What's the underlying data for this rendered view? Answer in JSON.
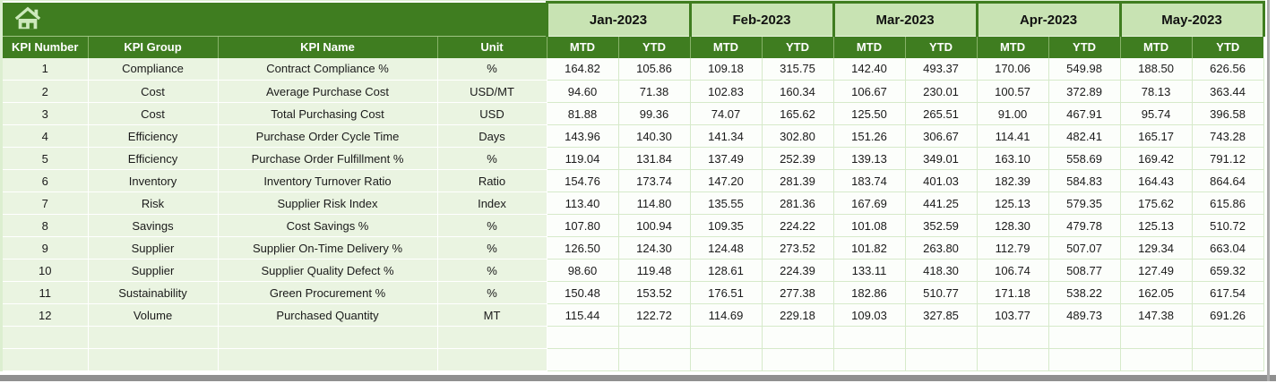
{
  "header": {
    "left": [
      "KPI Number",
      "KPI Group",
      "KPI Name",
      "Unit"
    ],
    "months": [
      "Jan-2023",
      "Feb-2023",
      "Mar-2023",
      "Apr-2023",
      "May-2023"
    ],
    "sub": [
      "MTD",
      "YTD"
    ]
  },
  "rows": [
    {
      "num": "1",
      "group": "Compliance",
      "name": "Contract Compliance %",
      "unit": "%",
      "values": [
        "164.82",
        "105.86",
        "109.18",
        "315.75",
        "142.40",
        "493.37",
        "170.06",
        "549.98",
        "188.50",
        "626.56"
      ]
    },
    {
      "num": "2",
      "group": "Cost",
      "name": "Average Purchase Cost",
      "unit": "USD/MT",
      "values": [
        "94.60",
        "71.38",
        "102.83",
        "160.34",
        "106.67",
        "230.01",
        "100.57",
        "372.89",
        "78.13",
        "363.44"
      ]
    },
    {
      "num": "3",
      "group": "Cost",
      "name": "Total Purchasing Cost",
      "unit": "USD",
      "values": [
        "81.88",
        "99.36",
        "74.07",
        "165.62",
        "125.50",
        "265.51",
        "91.00",
        "467.91",
        "95.74",
        "396.58"
      ]
    },
    {
      "num": "4",
      "group": "Efficiency",
      "name": "Purchase Order Cycle Time",
      "unit": "Days",
      "values": [
        "143.96",
        "140.30",
        "141.34",
        "302.80",
        "151.26",
        "306.67",
        "114.41",
        "482.41",
        "165.17",
        "743.28"
      ]
    },
    {
      "num": "5",
      "group": "Efficiency",
      "name": "Purchase Order Fulfillment %",
      "unit": "%",
      "values": [
        "119.04",
        "131.84",
        "137.49",
        "252.39",
        "139.13",
        "349.01",
        "163.10",
        "558.69",
        "169.42",
        "791.12"
      ]
    },
    {
      "num": "6",
      "group": "Inventory",
      "name": "Inventory Turnover Ratio",
      "unit": "Ratio",
      "values": [
        "154.76",
        "173.74",
        "147.20",
        "281.39",
        "183.74",
        "401.03",
        "182.39",
        "584.83",
        "164.43",
        "864.64"
      ]
    },
    {
      "num": "7",
      "group": "Risk",
      "name": "Supplier Risk Index",
      "unit": "Index",
      "values": [
        "113.40",
        "114.80",
        "135.55",
        "281.36",
        "167.69",
        "441.25",
        "125.13",
        "579.35",
        "175.62",
        "615.86"
      ]
    },
    {
      "num": "8",
      "group": "Savings",
      "name": "Cost Savings %",
      "unit": "%",
      "values": [
        "107.80",
        "100.94",
        "109.35",
        "224.22",
        "101.08",
        "352.59",
        "128.30",
        "479.78",
        "125.13",
        "510.72"
      ]
    },
    {
      "num": "9",
      "group": "Supplier",
      "name": "Supplier On-Time Delivery %",
      "unit": "%",
      "values": [
        "126.50",
        "124.30",
        "124.48",
        "273.52",
        "101.82",
        "263.80",
        "112.79",
        "507.07",
        "129.34",
        "663.04"
      ]
    },
    {
      "num": "10",
      "group": "Supplier",
      "name": "Supplier Quality Defect %",
      "unit": "%",
      "values": [
        "98.60",
        "119.48",
        "128.61",
        "224.39",
        "133.11",
        "418.30",
        "106.74",
        "508.77",
        "127.49",
        "659.32"
      ]
    },
    {
      "num": "11",
      "group": "Sustainability",
      "name": "Green Procurement %",
      "unit": "%",
      "values": [
        "150.48",
        "153.52",
        "176.51",
        "277.38",
        "182.86",
        "510.77",
        "171.18",
        "538.22",
        "162.05",
        "617.54"
      ]
    },
    {
      "num": "12",
      "group": "Volume",
      "name": "Purchased Quantity",
      "unit": "MT",
      "values": [
        "115.44",
        "122.72",
        "114.69",
        "229.18",
        "109.03",
        "327.85",
        "103.77",
        "489.73",
        "147.38",
        "691.26"
      ]
    }
  ],
  "empty_row_count": 2,
  "icons": {
    "home": "home-icon"
  },
  "colors": {
    "dark_green": "#3F7D20",
    "light_green": "#C8E3B3",
    "pale_cell": "#EAF4E1",
    "cell_white": "#FCFEFB",
    "grid_line": "#D6EACA",
    "chrome_gray": "#909090"
  }
}
